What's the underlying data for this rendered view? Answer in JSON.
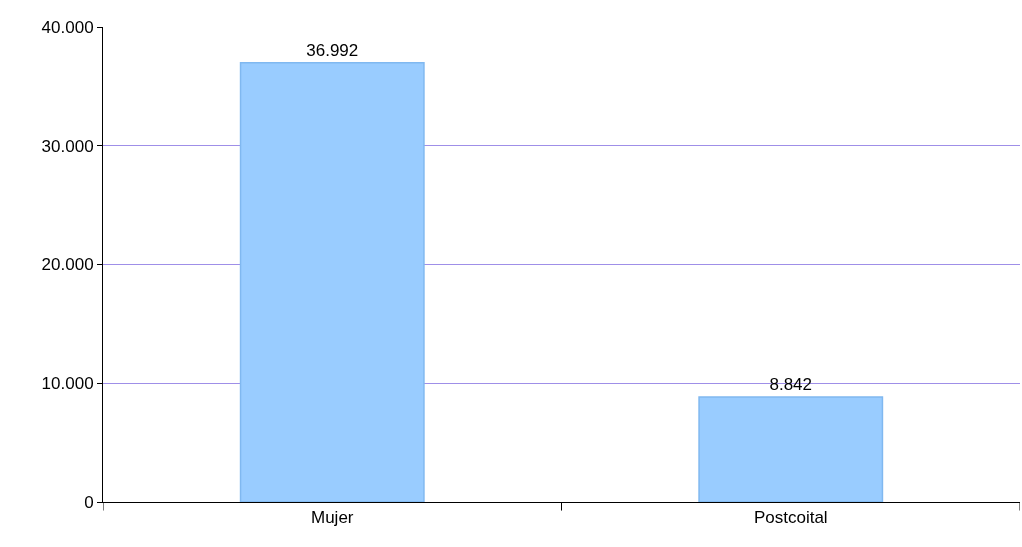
{
  "chart_data": {
    "type": "bar",
    "categories": [
      "Mujer",
      "Postcoital"
    ],
    "values": [
      36992,
      8842
    ],
    "value_labels": [
      "36.992",
      "8.842"
    ],
    "color": "#99ccff",
    "ylim": [
      0,
      40000
    ],
    "yticks": [
      {
        "value": 0,
        "label": "0"
      },
      {
        "value": 10000,
        "label": "10.000"
      },
      {
        "value": 20000,
        "label": "20.000"
      },
      {
        "value": 30000,
        "label": "30.000"
      },
      {
        "value": 40000,
        "label": "40.000"
      }
    ],
    "grid": "y"
  }
}
